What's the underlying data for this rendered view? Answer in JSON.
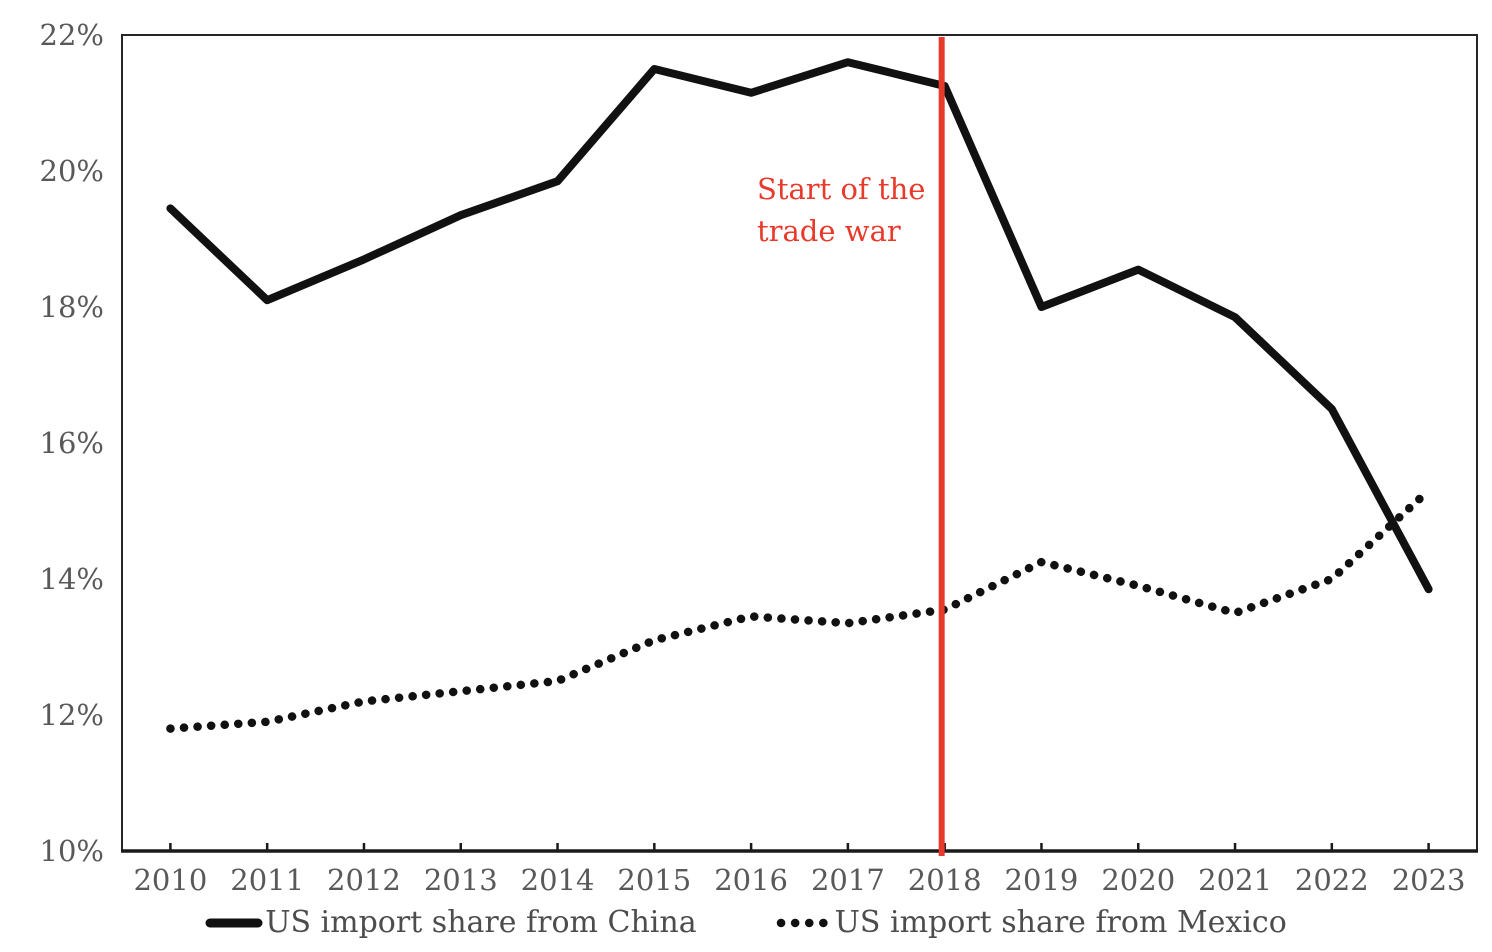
{
  "chart_data": {
    "type": "line",
    "title": "",
    "xlabel": "",
    "ylabel": "",
    "categories": [
      "2010",
      "2011",
      "2012",
      "2013",
      "2014",
      "2015",
      "2016",
      "2017",
      "2018",
      "2019",
      "2020",
      "2021",
      "2022",
      "2023"
    ],
    "series": [
      {
        "name": "US import share from China",
        "style": "solid",
        "color": "#111111",
        "values": [
          19.45,
          18.1,
          18.7,
          19.35,
          19.85,
          21.5,
          21.15,
          21.6,
          21.25,
          18.0,
          18.55,
          17.85,
          16.5,
          13.85
        ]
      },
      {
        "name": "US import share from Mexico",
        "style": "dotted",
        "color": "#111111",
        "values": [
          11.8,
          11.9,
          12.2,
          12.35,
          12.5,
          13.1,
          13.45,
          13.35,
          13.55,
          14.25,
          13.9,
          13.5,
          14.0,
          15.3
        ]
      }
    ],
    "ylim": [
      10,
      22
    ],
    "ytick_step": 2,
    "ytick_labels": [
      "10%",
      "12%",
      "14%",
      "16%",
      "18%",
      "20%",
      "22%"
    ],
    "grid": false,
    "legend_position": "bottom",
    "axis_label_color": "#595959",
    "legend_text_color": "#4d4d4d",
    "accent_red": "#e8392b",
    "vline": {
      "x_year": "2018",
      "color": "#e8392b"
    },
    "annotation": {
      "line1": "Start of the",
      "line2": "trade war",
      "color": "#e8392b"
    },
    "legend": [
      {
        "label": "US import share from China",
        "style": "solid"
      },
      {
        "label": "US import share from Mexico",
        "style": "dotted"
      }
    ]
  }
}
